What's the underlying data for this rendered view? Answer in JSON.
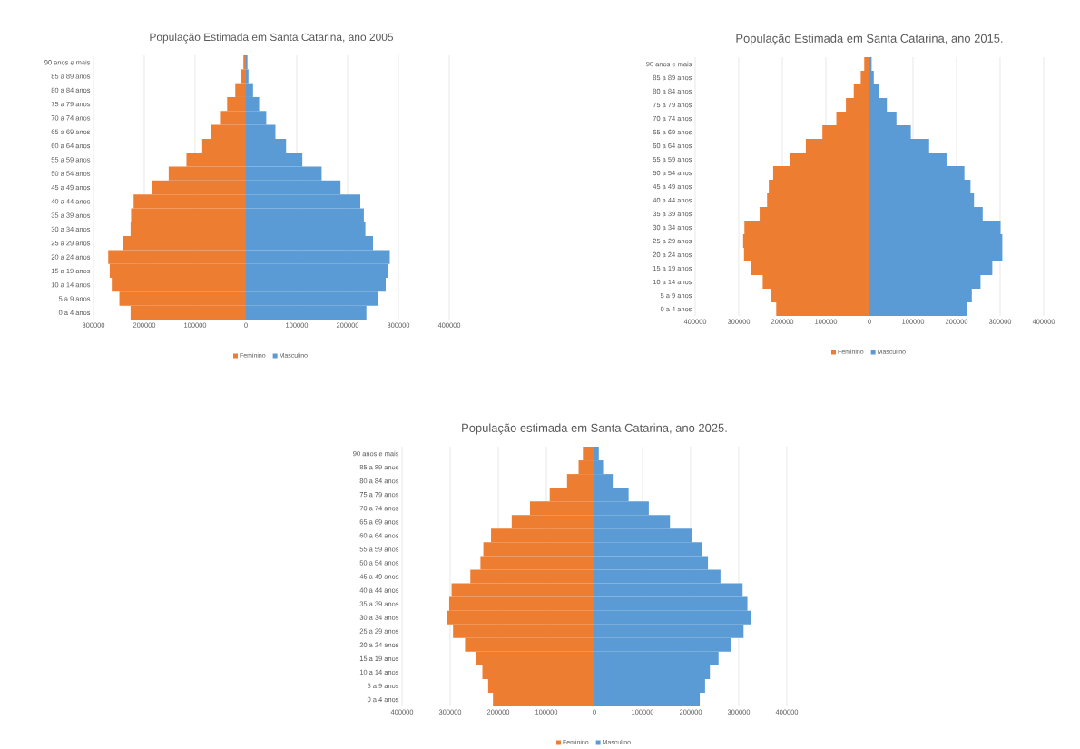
{
  "chart_data": [
    {
      "type": "bar",
      "orientation": "horizontal",
      "title": "População Estimada em Santa Catarina, ano 2005",
      "categories": [
        "90 anos e mais",
        "85 a 89 anos",
        "80 a 84 anos",
        "75 a 79 anos",
        "70 a 74 anos",
        "65 a 69 anos",
        "60 a 64 anos",
        "55 a 59 anos",
        "50 a 54 anos",
        "45 a 49 anos",
        "40 a 44 anos",
        "35 a 39 anos",
        "30 a 34 anos",
        "25 a 29 anos",
        "20 a 24 anos",
        "15 a 19 anos",
        "10 a 14 anos",
        "5 a 9 anos",
        "0 a 4 anos"
      ],
      "series": [
        {
          "name": "Feminino",
          "color": "#ed7d31",
          "values": [
            -5000,
            -10000,
            -21000,
            -37000,
            -51000,
            -68000,
            -86000,
            -117000,
            -152000,
            -185000,
            -221000,
            -226000,
            -227000,
            -242000,
            -271000,
            -268000,
            -264000,
            -249000,
            -227000
          ]
        },
        {
          "name": "Masculino",
          "color": "#5b9bd5",
          "values": [
            3000,
            5000,
            14000,
            26000,
            40000,
            58000,
            79000,
            111000,
            149000,
            186000,
            225000,
            232000,
            235000,
            250000,
            283000,
            279000,
            275000,
            259000,
            237000
          ]
        }
      ],
      "xlim": [
        -300000,
        400000
      ],
      "xticks": [
        {
          "value": -300000,
          "label": "300000"
        },
        {
          "value": -200000,
          "label": "200000"
        },
        {
          "value": -100000,
          "label": "100000"
        },
        0,
        100000,
        200000,
        300000,
        400000
      ],
      "grid": "x",
      "legend": "bottom",
      "stacked": true
    },
    {
      "type": "bar",
      "orientation": "horizontal",
      "title": "População Estimada em Santa Catarina, ano 2015.",
      "categories": [
        "90 anos e mais",
        "85 a 89 anos",
        "80 a 84 anos",
        "75 a 79 anos",
        "70 a 74 anos",
        "65 a 69 anos",
        "60 a 64 anos",
        "55 a 59 anos",
        "50 a 54 anos",
        "45 a 49 anos",
        "40 a 44 anos",
        "35 a 39 anos",
        "30 a 34 anos",
        "25 a 29 anos",
        "20 a 24 anos",
        "15 a 19 anos",
        "10 a 14 anos",
        "5 a 9 anos",
        "0 a 4 anos"
      ],
      "series": [
        {
          "name": "Feminino",
          "color": "#ed7d31",
          "values": [
            -12000,
            -20000,
            -36000,
            -54000,
            -76000,
            -108000,
            -146000,
            -182000,
            -221000,
            -231000,
            -235000,
            -252000,
            -287000,
            -290000,
            -288000,
            -271000,
            -245000,
            -225000,
            -214000
          ]
        },
        {
          "name": "Masculino",
          "color": "#5b9bd5",
          "values": [
            5000,
            10000,
            22000,
            40000,
            62000,
            95000,
            137000,
            177000,
            218000,
            232000,
            240000,
            260000,
            301000,
            305000,
            305000,
            282000,
            255000,
            235000,
            224000
          ]
        }
      ],
      "xlim": [
        -400000,
        400000
      ],
      "xticks": [
        {
          "value": -400000,
          "label": "400000"
        },
        {
          "value": -300000,
          "label": "300000"
        },
        {
          "value": -200000,
          "label": "200000"
        },
        {
          "value": -100000,
          "label": "100000"
        },
        0,
        100000,
        200000,
        300000,
        400000
      ],
      "grid": "x",
      "legend": "bottom",
      "stacked": true
    },
    {
      "type": "bar",
      "orientation": "horizontal",
      "title": "População estimada em Santa Catarina, ano 2025.",
      "categories": [
        "90 anos e mais",
        "85 a 89 anos",
        "80 a 84 anos",
        "75 a 79 anos",
        "70 a 74 anos",
        "65 a 69 anos",
        "60 a 64 anos",
        "55 a 59 anos",
        "50 a 54 anos",
        "45 a 49 anos",
        "40 a 44 anos",
        "35 a 39 anos",
        "30 a 34 anos",
        "25 a 29 anos",
        "20 a 24 anos",
        "15 a 19 anos",
        "10 a 14 anos",
        "5 a 9 anos",
        "0 a 4 anos"
      ],
      "series": [
        {
          "name": "Feminino",
          "color": "#ed7d31",
          "values": [
            -24000,
            -33000,
            -57000,
            -93000,
            -134000,
            -172000,
            -215000,
            -231000,
            -237000,
            -258000,
            -297000,
            -302000,
            -307000,
            -294000,
            -269000,
            -247000,
            -233000,
            -221000,
            -211000
          ]
        },
        {
          "name": "Masculino",
          "color": "#5b9bd5",
          "values": [
            9000,
            18000,
            38000,
            71000,
            113000,
            157000,
            203000,
            223000,
            236000,
            262000,
            308000,
            318000,
            325000,
            310000,
            283000,
            258000,
            240000,
            230000,
            219000
          ]
        }
      ],
      "xlim": [
        -400000,
        400000
      ],
      "xticks": [
        {
          "value": -400000,
          "label": "400000"
        },
        {
          "value": -300000,
          "label": "300000"
        },
        {
          "value": -200000,
          "label": "200000"
        },
        {
          "value": -100000,
          "label": "100000"
        },
        0,
        100000,
        200000,
        300000,
        400000
      ],
      "grid": "x",
      "legend": "bottom",
      "stacked": true
    }
  ]
}
